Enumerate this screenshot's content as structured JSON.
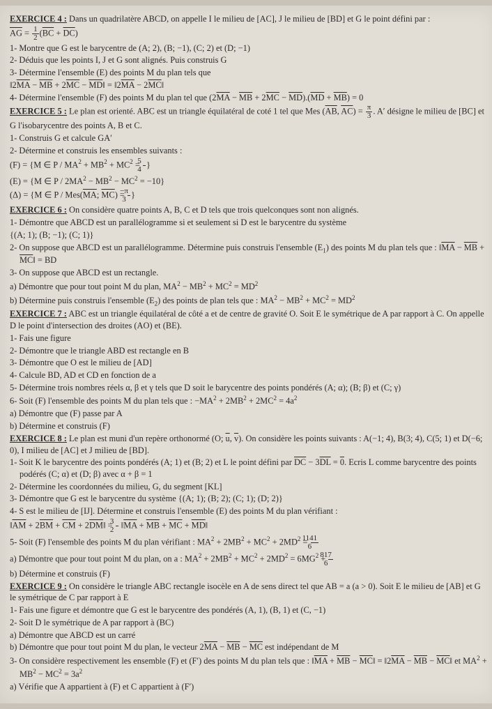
{
  "ex4": {
    "title": "EXERCICE 4 :",
    "intro": "Dans un quadrilatère ABCD, on appelle I le milieu de [AC], J le milieu de [BD] et G le point défini par :",
    "eq": "AG = ½(BC + DC)",
    "q1": "1- Montre que G est le barycentre de (A; 2), (B; −1), (C; 2) et (D; −1)",
    "q2": "2- Déduis que les points I, J et G sont alignés. Puis construis G",
    "q3": "3- Détermine l'ensemble (E) des points M du plan tels que",
    "q3b": "‖2MA − MB + 2MC − MD‖ = ‖2MA − 2MC‖",
    "q4": "4- Détermine l'ensemble (F) des points M du plan tel que (2MA − MB + 2MC − MD).(MD + MB) = 0"
  },
  "ex5": {
    "title": "EXERCICE 5 :",
    "intro": "Le plan est orienté. ABC est un triangle équilatéral de coté 1 tel que Mes (AB, AC) = π/3. A′ désigne le milieu de [BC] et G l'isobarycentre des points A, B et C.",
    "q1": "1- Construis G et calcule GA′",
    "q2": "2- Détermine et construis les ensembles suivants :",
    "F": "(F) = {M ∈ P / MA² + MB² + MC² = 5/4}",
    "E": "(E) = {M ∈ P / 2MA² − MB² − MC² = −10}",
    "D": "(Δ) = {M ∈ P / Mes(MA; MC) = −π/3}"
  },
  "ex6": {
    "title": "EXERCICE 6 :",
    "intro": "On considère quatre points A, B, C et D tels que trois quelconques sont non alignés.",
    "q1": "1- Démontre que ABCD est un parallélogramme si et seulement si D est le barycentre du système",
    "q1b": "{(A; 1); (B; −1); (C; 1)}",
    "q2": "2- On suppose que ABCD est un parallélogramme. Détermine puis construis l'ensemble (E₁) des points M du plan tels que : ‖MA − MB + MC‖ = BD",
    "q3": "3- On suppose que ABCD est un rectangle.",
    "q3a": "a) Démontre que pour tout point M du plan, MA² − MB² + MC² = MD²",
    "q3b": "b) Détermine puis construis l'ensemble (E₂) des points de plan tels que : MA² − MB² + MC² = MD²"
  },
  "ex7": {
    "title": "EXERCICE 7 :",
    "intro": "ABC est un triangle équilatéral de côté a et de centre de gravité O. Soit E le symétrique de A par rapport à C. On appelle D le point d'intersection des droites (AO) et (BE).",
    "q1": "1- Fais une figure",
    "q2": "2- Démontre que le triangle ABD est rectangle en B",
    "q3": "3- Démontre que O est le milieu de [AD]",
    "q4": "4- Calcule BD, AD et CD en fonction de a",
    "q5": "5- Détermine trois nombres réels α, β et γ tels que D soit le barycentre des points pondérés (A; α); (B; β) et (C; γ)",
    "q6": "6- Soit (F) l'ensemble des points M du plan tels que : −MA² + 2MB² + 2MC² = 4a²",
    "q6a": "a) Démontre que (F) passe par A",
    "q6b": "b) Détermine et construis (F)"
  },
  "ex8": {
    "title": "EXERCICE 8 :",
    "intro": "Le plan est muni d'un repère orthonormé (O; u, v). On considère les points suivants : A(−1; 4), B(3; 4), C(5; 1) et D(−6; 0), I milieu de [AC] et J milieu de [BD].",
    "q1": "1- Soit K le barycentre des points pondérés (A; 1) et (B; 2) et L le point défini par DC − 3DL = 0. Ecris L comme barycentre des points podérés (C; α) et (D; β) avec α + β = 1",
    "q2": "2- Détermine les coordonnées du milieu, G, du segment [KL]",
    "q3": "3- Démontre que G est le barycentre du système {(A; 1); (B; 2); (C; 1); (D; 2)}",
    "q4": "4- S est le milieu de [IJ]. Détermine et construis l'ensemble (E) des points M du plan vérifiant :",
    "q4b": "‖AM + 2BM + CM + 2DM‖ = 3/2 ‖MA + MB + MC + MD‖",
    "q5": "5- Soit (F) l'ensemble des points M du plan vérifiant : MA² + 2MB² + MC² + 2MD² = 1141/6",
    "q5a": "a) Démontre que pour tout point M du plan, on a : MA² + 2MB² + MC² + 2MD² = 6MG² + 817/6",
    "q5b": "b) Détermine et construis (F)"
  },
  "ex9": {
    "title": "EXERCICE 9 :",
    "intro": "On considère le triangle ABC rectangle isocèle en A de sens direct tel que AB = a (a > 0). Soit E le milieu de [AB] et G le symétrique de C par rapport à E",
    "q1": "1- Fais une figure et démontre que G est le barycentre des pondérés (A, 1), (B, 1) et (C, −1)",
    "q2": "2- Soit D le symétrique de A par rapport à (BC)",
    "q2a": "a) Démontre que ABCD est un carré",
    "q2b": "b) Démontre que pour tout point M du plan, le vecteur 2MA − MB − MC est indépendant de M",
    "q3": "3- On considère respectivement les ensemble (F) et (F′) des points M du plan tels que : ‖MA + MB − MC‖ = ‖2MA − MB − MC‖ et MA² + MB² − MC² = 3a²",
    "q3a": "a) Vérifie que A appartient à (F) et C appartient à (F′)"
  }
}
